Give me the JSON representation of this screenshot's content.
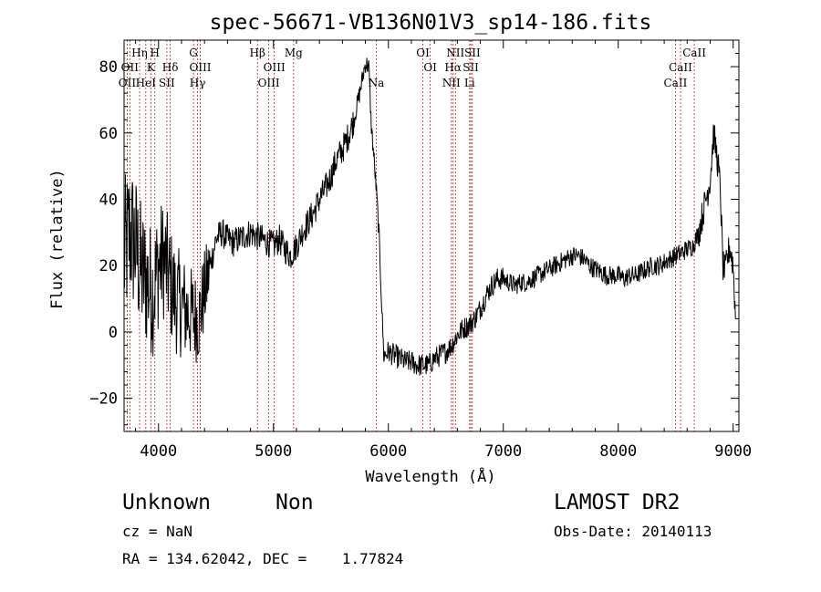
{
  "chart_data": {
    "type": "line",
    "title": "spec-56671-VB136N01V3_sp14-186.fits",
    "xlabel": "Wavelength (Å)",
    "ylabel": "Flux (relative)",
    "xlim": [
      3700,
      9050
    ],
    "ylim": [
      -30,
      88
    ],
    "xticks": [
      4000,
      5000,
      6000,
      7000,
      8000,
      9000
    ],
    "yticks": [
      -20,
      0,
      20,
      40,
      60,
      80
    ],
    "grid": false,
    "series": [
      {
        "color": "#000000",
        "anchors": [
          [
            3700,
            22
          ],
          [
            3750,
            30
          ],
          [
            3800,
            26
          ],
          [
            3850,
            18
          ],
          [
            3900,
            15
          ],
          [
            3950,
            12
          ],
          [
            4000,
            20
          ],
          [
            4050,
            22
          ],
          [
            4100,
            15
          ],
          [
            4150,
            10
          ],
          [
            4200,
            8
          ],
          [
            4250,
            6
          ],
          [
            4300,
            5
          ],
          [
            4350,
            4
          ],
          [
            4400,
            12
          ],
          [
            4450,
            20
          ],
          [
            4500,
            28
          ],
          [
            4550,
            30
          ],
          [
            4600,
            28
          ],
          [
            4650,
            27
          ],
          [
            4700,
            28
          ],
          [
            4750,
            29
          ],
          [
            4800,
            30
          ],
          [
            4850,
            29
          ],
          [
            4900,
            28
          ],
          [
            4950,
            27
          ],
          [
            5000,
            26
          ],
          [
            5050,
            28
          ],
          [
            5100,
            25
          ],
          [
            5150,
            23
          ],
          [
            5200,
            26
          ],
          [
            5250,
            30
          ],
          [
            5300,
            33
          ],
          [
            5350,
            36
          ],
          [
            5400,
            40
          ],
          [
            5450,
            43
          ],
          [
            5500,
            47
          ],
          [
            5550,
            52
          ],
          [
            5600,
            55
          ],
          [
            5650,
            59
          ],
          [
            5700,
            64
          ],
          [
            5750,
            72
          ],
          [
            5800,
            81
          ],
          [
            5830,
            80
          ],
          [
            5850,
            63
          ],
          [
            5880,
            50
          ],
          [
            5900,
            40
          ],
          [
            5920,
            28
          ],
          [
            5940,
            10
          ],
          [
            5960,
            -7
          ],
          [
            6000,
            -6
          ],
          [
            6050,
            -7
          ],
          [
            6100,
            -8
          ],
          [
            6150,
            -9
          ],
          [
            6200,
            -9
          ],
          [
            6250,
            -10
          ],
          [
            6300,
            -10
          ],
          [
            6350,
            -10
          ],
          [
            6400,
            -8
          ],
          [
            6450,
            -7
          ],
          [
            6500,
            -6
          ],
          [
            6550,
            -4
          ],
          [
            6600,
            -1
          ],
          [
            6650,
            1
          ],
          [
            6700,
            2
          ],
          [
            6750,
            4
          ],
          [
            6800,
            7
          ],
          [
            6850,
            11
          ],
          [
            6900,
            14
          ],
          [
            6950,
            16
          ],
          [
            7000,
            16
          ],
          [
            7050,
            15
          ],
          [
            7100,
            14
          ],
          [
            7150,
            15
          ],
          [
            7200,
            15
          ],
          [
            7250,
            16
          ],
          [
            7300,
            17
          ],
          [
            7350,
            18
          ],
          [
            7400,
            19
          ],
          [
            7450,
            20
          ],
          [
            7500,
            21
          ],
          [
            7550,
            22
          ],
          [
            7600,
            23
          ],
          [
            7650,
            23
          ],
          [
            7700,
            22
          ],
          [
            7750,
            20
          ],
          [
            7800,
            19
          ],
          [
            7850,
            18
          ],
          [
            7900,
            17
          ],
          [
            7950,
            17
          ],
          [
            8000,
            17
          ],
          [
            8050,
            16
          ],
          [
            8100,
            17
          ],
          [
            8150,
            17
          ],
          [
            8200,
            18
          ],
          [
            8250,
            19
          ],
          [
            8300,
            20
          ],
          [
            8350,
            20
          ],
          [
            8400,
            21
          ],
          [
            8450,
            22
          ],
          [
            8500,
            23
          ],
          [
            8550,
            24
          ],
          [
            8600,
            25
          ],
          [
            8650,
            26
          ],
          [
            8700,
            30
          ],
          [
            8750,
            38
          ],
          [
            8800,
            46
          ],
          [
            8830,
            60
          ],
          [
            8850,
            55
          ],
          [
            8870,
            50
          ],
          [
            8890,
            42
          ],
          [
            8910,
            20
          ],
          [
            8930,
            18
          ],
          [
            8950,
            22
          ],
          [
            8970,
            26
          ],
          [
            9000,
            20
          ],
          [
            9020,
            5
          ]
        ]
      }
    ],
    "lines": [
      {
        "w": 3727,
        "labels": [
          {
            "t": "OII",
            "r": 3
          }
        ]
      },
      {
        "w": 3750,
        "labels": [
          {
            "t": "OII",
            "r": 2
          }
        ]
      },
      {
        "w": 3835,
        "labels": [
          {
            "t": "Hη",
            "r": 1
          }
        ]
      },
      {
        "w": 3889,
        "labels": [
          {
            "t": "HeI",
            "r": 3
          }
        ]
      },
      {
        "w": 3933,
        "labels": [
          {
            "t": "K",
            "r": 2
          }
        ]
      },
      {
        "w": 3968,
        "labels": [
          {
            "t": "H",
            "r": 1
          }
        ]
      },
      {
        "w": 4072,
        "labels": [
          {
            "t": "SII",
            "r": 3
          }
        ]
      },
      {
        "w": 4102,
        "labels": [
          {
            "t": "Hδ",
            "r": 2
          }
        ]
      },
      {
        "w": 4304,
        "labels": [
          {
            "t": "G",
            "r": 1
          }
        ]
      },
      {
        "w": 4340,
        "labels": [
          {
            "t": "Hγ",
            "r": 3
          }
        ]
      },
      {
        "w": 4363,
        "labels": [
          {
            "t": "OIII",
            "r": 2
          }
        ]
      },
      {
        "w": 4861,
        "labels": [
          {
            "t": "Hβ",
            "r": 1
          }
        ]
      },
      {
        "w": 4959,
        "labels": [
          {
            "t": "OIII",
            "r": 3
          }
        ]
      },
      {
        "w": 5007,
        "labels": [
          {
            "t": "OIII",
            "r": 2
          }
        ]
      },
      {
        "w": 5175,
        "labels": [
          {
            "t": "Mg",
            "r": 1
          }
        ]
      },
      {
        "w": 5894,
        "labels": [
          {
            "t": "Na",
            "r": 3
          }
        ]
      },
      {
        "w": 6300,
        "labels": [
          {
            "t": "OI",
            "r": 1
          }
        ]
      },
      {
        "w": 6364,
        "labels": [
          {
            "t": "OI",
            "r": 2
          }
        ]
      },
      {
        "w": 6548,
        "labels": [
          {
            "t": "NII",
            "r": 3
          }
        ]
      },
      {
        "w": 6563,
        "labels": [
          {
            "t": "Hα",
            "r": 2
          }
        ]
      },
      {
        "w": 6583,
        "labels": [
          {
            "t": "NII",
            "r": 1
          }
        ]
      },
      {
        "w": 6707,
        "labels": [
          {
            "t": "Li",
            "r": 3
          }
        ]
      },
      {
        "w": 6717,
        "labels": [
          {
            "t": "SII",
            "r": 2
          }
        ]
      },
      {
        "w": 6731,
        "labels": [
          {
            "t": "SII",
            "r": 1
          }
        ]
      },
      {
        "w": 8498,
        "labels": [
          {
            "t": "CaII",
            "r": 3
          }
        ]
      },
      {
        "w": 8542,
        "labels": [
          {
            "t": "CaII",
            "r": 2
          }
        ]
      },
      {
        "w": 8662,
        "labels": [
          {
            "t": "CaII",
            "r": 1
          }
        ]
      }
    ]
  },
  "info": {
    "class_label": "Unknown",
    "subclass_label": "Non",
    "survey": "LAMOST DR2",
    "cz": "cz = NaN",
    "obs_date": "Obs-Date: 20140113",
    "coords": "RA = 134.62042, DEC =    1.77824"
  }
}
